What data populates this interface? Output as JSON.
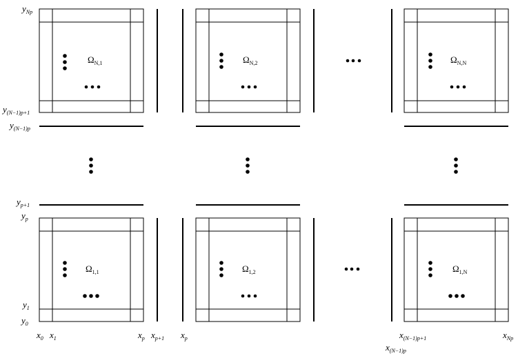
{
  "labels": {
    "y_top": {
      "main": "y",
      "sub": "Np"
    },
    "y_upper_b": {
      "main": "y",
      "sub": "(N−1)p+1"
    },
    "y_upper_a": {
      "main": "y",
      "sub": "(N−1)p"
    },
    "y_mid_b": {
      "main": "y",
      "sub": "p+1"
    },
    "y_mid_a": {
      "main": "y",
      "sub": "p"
    },
    "y_1": {
      "main": "y",
      "sub": "1"
    },
    "y_0": {
      "main": "y",
      "sub": "0"
    },
    "x_0": {
      "main": "x",
      "sub": "0"
    },
    "x_1": {
      "main": "x",
      "sub": "1"
    },
    "x_p_a": {
      "main": "x",
      "sub": "p"
    },
    "x_p1": {
      "main": "x",
      "sub": "p+1"
    },
    "x_p_b": {
      "main": "x",
      "sub": "p"
    },
    "x_np1": {
      "main": "x",
      "sub": "(N−1)p+1"
    },
    "x_np": {
      "main": "x",
      "sub": "(N−1)p"
    },
    "x_Np": {
      "main": "x",
      "sub": "Np"
    }
  },
  "subdomains": {
    "top_left": {
      "main": "Ω",
      "sub": "N,1"
    },
    "top_middle": {
      "main": "Ω",
      "sub": "N,2"
    },
    "top_right": {
      "main": "Ω",
      "sub": "N,N"
    },
    "bottom_left": {
      "main": "Ω",
      "sub": "1,1"
    },
    "bottom_middle": {
      "main": "Ω",
      "sub": "1,2"
    },
    "bottom_right": {
      "main": "Ω",
      "sub": "1,N"
    }
  }
}
